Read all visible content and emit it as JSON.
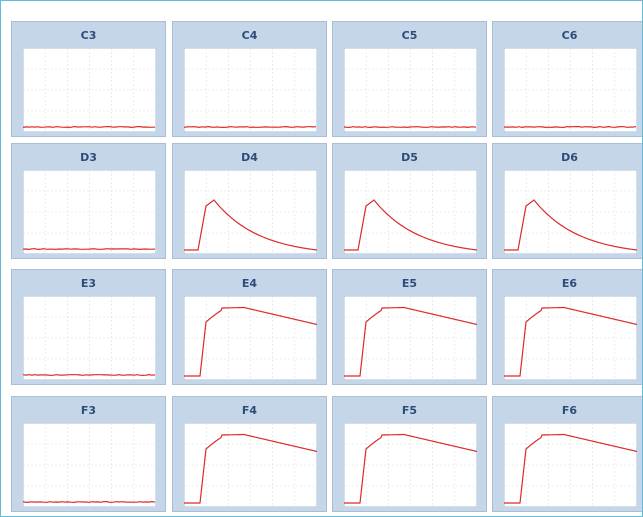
{
  "colors": {
    "trace": "#dd2a2a",
    "grid": "#dcdcdc",
    "well_bg": "#c4d6e8",
    "frame": "#68b8d8",
    "label": "#2e4c7a"
  },
  "wells": [
    {
      "label": "C3",
      "curve": "flat"
    },
    {
      "label": "C4",
      "curve": "flat"
    },
    {
      "label": "C5",
      "curve": "flat"
    },
    {
      "label": "C6",
      "curve": "flat"
    },
    {
      "label": "D3",
      "curve": "flat"
    },
    {
      "label": "D4",
      "curve": "peak"
    },
    {
      "label": "D5",
      "curve": "peak"
    },
    {
      "label": "D6",
      "curve": "peak"
    },
    {
      "label": "E3",
      "curve": "flat"
    },
    {
      "label": "E4",
      "curve": "plateau"
    },
    {
      "label": "E5",
      "curve": "plateau"
    },
    {
      "label": "E6",
      "curve": "plateau"
    },
    {
      "label": "F3",
      "curve": "flat"
    },
    {
      "label": "F4",
      "curve": "plateau"
    },
    {
      "label": "F5",
      "curve": "plateau"
    },
    {
      "label": "F6",
      "curve": "plateau"
    }
  ]
}
